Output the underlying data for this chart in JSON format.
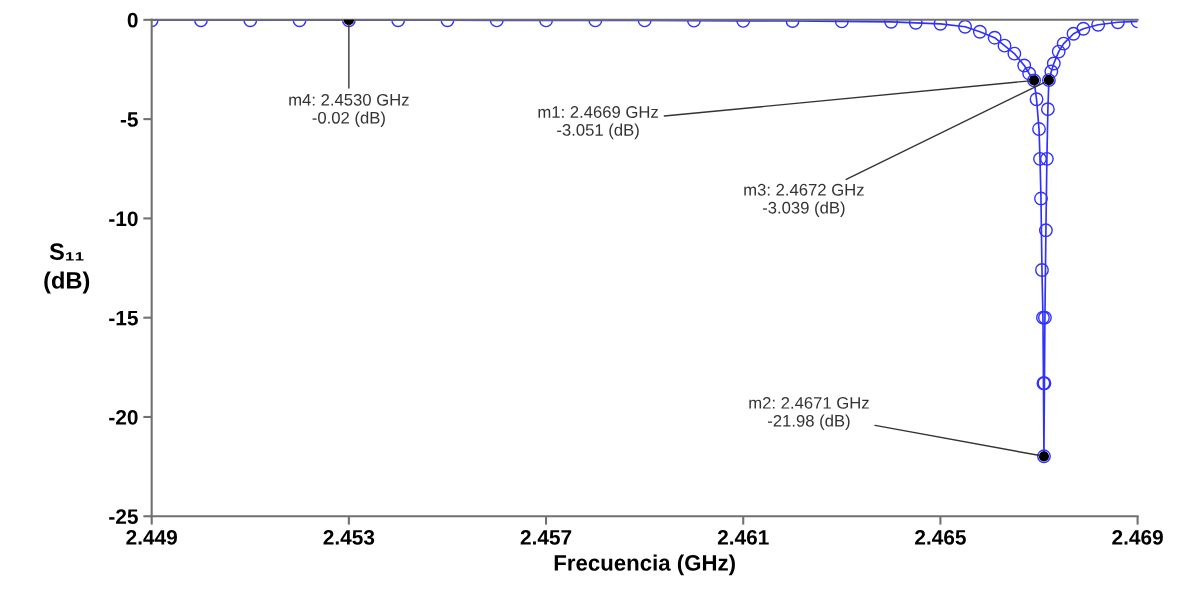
{
  "chart_data": {
    "type": "line",
    "xlabel": "Frecuencia (GHz)",
    "ylabel": "S₁₁\n(dB)",
    "xlim": [
      2.449,
      2.469
    ],
    "xticks": [
      {
        "value": 2.449,
        "label": "2.449"
      },
      {
        "value": 2.453,
        "label": "2.453"
      },
      {
        "value": 2.457,
        "label": "2.457"
      },
      {
        "value": 2.461,
        "label": "2.461"
      },
      {
        "value": 2.465,
        "label": "2.465"
      },
      {
        "value": 2.469,
        "label": "2.469"
      }
    ],
    "ylim": [
      -25,
      0
    ],
    "yticks": [
      -25,
      -20,
      -15,
      -10,
      -5,
      0
    ],
    "grid": false,
    "legend": false,
    "series": [
      {
        "color": "#3030ff",
        "marker": "circle",
        "line_style": "solid",
        "x": [
          2.449,
          2.45,
          2.451,
          2.452,
          2.453,
          2.454,
          2.455,
          2.456,
          2.457,
          2.458,
          2.459,
          2.46,
          2.461,
          2.462,
          2.463,
          2.464,
          2.4645,
          2.465,
          2.4655,
          2.4658,
          2.4661,
          2.4663,
          2.4665,
          2.4667,
          2.4668,
          2.4669,
          2.46695,
          2.467,
          2.46702,
          2.46704,
          2.46706,
          2.46708,
          2.46709,
          2.4671,
          2.46711,
          2.46712,
          2.46714,
          2.46716,
          2.46718,
          2.4672,
          2.46725,
          2.4673,
          2.4674,
          2.4675,
          2.4677,
          2.4679,
          2.4682,
          2.4686,
          2.469
        ],
        "values": [
          -0.02,
          -0.02,
          -0.02,
          -0.02,
          -0.02,
          -0.02,
          -0.02,
          -0.03,
          -0.03,
          -0.03,
          -0.03,
          -0.04,
          -0.05,
          -0.06,
          -0.08,
          -0.1,
          -0.15,
          -0.2,
          -0.35,
          -0.6,
          -0.9,
          -1.3,
          -1.7,
          -2.3,
          -2.7,
          -3.051,
          -4,
          -5.5,
          -7,
          -9,
          -12.6,
          -15,
          -18.3,
          -21.98,
          -18.3,
          -15,
          -10.6,
          -7,
          -4.5,
          -3.039,
          -2.6,
          -2.2,
          -1.6,
          -1.2,
          -0.7,
          -0.45,
          -0.25,
          -0.12,
          -0.08
        ]
      },
      {
        "type": "scatter",
        "color": "#000000",
        "marker": "circle",
        "x": [
          2.4669,
          2.4671,
          2.4672,
          2.453
        ],
        "values": [
          -3.051,
          -21.98,
          -3.039,
          -0.02
        ]
      }
    ],
    "annotations": [
      {
        "text": "m1: 2.4669 GHz\n-3.051 (dB)",
        "x": 2.4669,
        "y": -3.051
      },
      {
        "text": "m2: 2.4671 GHz\n-21.98 (dB)",
        "x": 2.4671,
        "y": -21.98
      },
      {
        "text": "m3: 2.4672 GHz\n-3.039 (dB)",
        "x": 2.4672,
        "y": -3.039
      },
      {
        "text": "m4: 2.4530 GHz\n-0.02 (dB)",
        "x": 2.453,
        "y": -0.02
      }
    ]
  }
}
